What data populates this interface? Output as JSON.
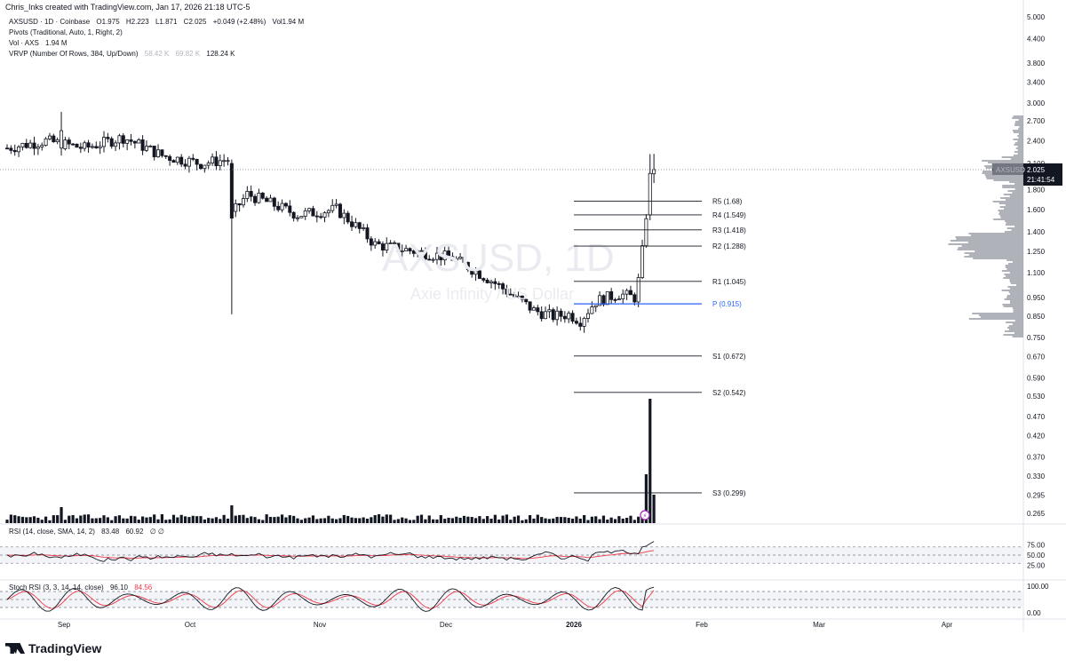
{
  "header": {
    "created": "Chris_Inks created with TradingView.com, Jan 17, 2026 21:18 UTC-5"
  },
  "legend": {
    "symbol": "AXSUSD · 1D · Coinbase",
    "o_label": "O",
    "o": "1.975",
    "h_label": "H",
    "h": "2.223",
    "l_label": "L",
    "l": "1.871",
    "c_label": "C",
    "c": "2.025",
    "change": "+0.049 (+2.48%)",
    "vol_label": "Vol",
    "vol": "1.94 M",
    "pivots": "Pivots (Traditional, Auto, 1, Right, 2)",
    "vol_row": "Vol · AXS",
    "vol_row_value": "1.94 M",
    "vrvp": "VRVP (Number Of Rows, 384, Up/Down)",
    "vrvp_up": "58.42 K",
    "vrvp_down": "69.82 K",
    "vrvp_total": "128.24 K"
  },
  "rsi_legend": {
    "label": "RSI (14, close, SMA, 14, 2)",
    "value1": "83.48",
    "value2": "60.92",
    "icons": "∅  ∅"
  },
  "stoch_legend": {
    "label": "Stoch RSI (3, 3, 14, 14, close)",
    "k": "96.10",
    "d": "84.56"
  },
  "watermark": {
    "main": "AXSUSD, 1D",
    "sub": "Axie Infinity / US Dollar"
  },
  "brand": "TradingView",
  "colors": {
    "pivot": "#2962ff",
    "level": "#131722",
    "vrvp": "#9598a1",
    "rsi_ma": "#f23645",
    "bull": "#ffffff",
    "bear": "#131722"
  },
  "price_badge": {
    "symbol": "AXSUSD",
    "price": "2.025",
    "countdown": "21:41:54"
  },
  "chart_data": {
    "type": "candlestick",
    "y_scale": "log",
    "y_ticks": [
      "5.000",
      "4.400",
      "3.800",
      "3.400",
      "3.000",
      "2.700",
      "2.400",
      "2.100",
      "1.800",
      "1.600",
      "1.400",
      "1.250",
      "1.100",
      "0.950",
      "0.850",
      "0.750",
      "0.670",
      "0.590",
      "0.530",
      "0.470",
      "0.420",
      "0.370",
      "0.330",
      "0.295",
      "0.265"
    ],
    "x_ticks": [
      "Sep",
      "Oct",
      "Nov",
      "Dec",
      "2026",
      "Feb",
      "Mar",
      "Apr"
    ],
    "last_price": 2.025,
    "pivot_levels": [
      {
        "label": "R5",
        "value": "1.68"
      },
      {
        "label": "R4",
        "value": "1.549"
      },
      {
        "label": "R3",
        "value": "1.418"
      },
      {
        "label": "R2",
        "value": "1.288"
      },
      {
        "label": "R1",
        "value": "1.045"
      },
      {
        "label": "P",
        "value": "0.915"
      },
      {
        "label": "S1",
        "value": "0.672"
      },
      {
        "label": "S2",
        "value": "0.542"
      },
      {
        "label": "S3",
        "value": "0.299"
      }
    ],
    "rsi_ticks": [
      "75.00",
      "50.00",
      "25.00"
    ],
    "rsi_last": 83.48,
    "rsi_ma_last": 60.92,
    "stoch_ticks": [
      "100.00",
      "0.00"
    ],
    "stoch_k_last": 96.1,
    "stoch_d_last": 84.56
  }
}
